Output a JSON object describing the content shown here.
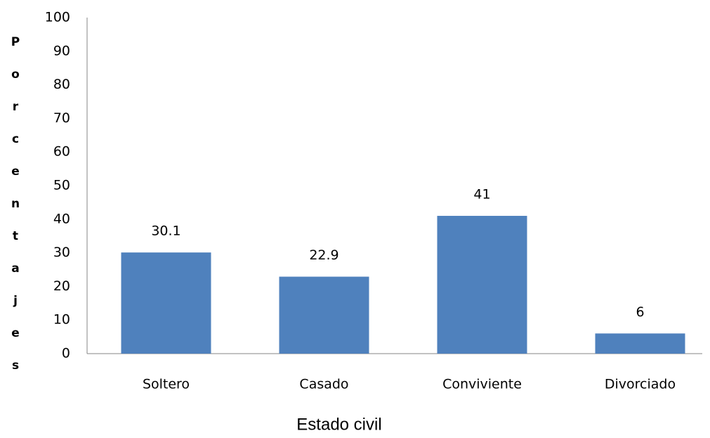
{
  "chart_data": {
    "type": "bar",
    "x_label": "Estado civil",
    "y_label": "Porcentajes",
    "categories": [
      "Soltero",
      "Casado",
      "Conviviente",
      "Divorciado"
    ],
    "values": [
      30.1,
      22.9,
      41,
      6
    ],
    "color": "#4f81bd",
    "ylim": [
      0,
      100
    ],
    "yticks": [
      0,
      10,
      20,
      30,
      40,
      50,
      60,
      70,
      80,
      90,
      100
    ],
    "grid": false
  }
}
